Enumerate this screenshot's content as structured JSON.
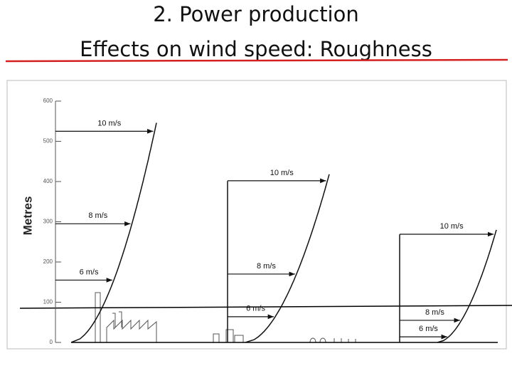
{
  "chart_data": {
    "type": "wind-profile",
    "title": "2. Power production",
    "subtitle": "Effects on wind speed: Roughness",
    "y_label": "Metres",
    "ylim": [
      0,
      600
    ],
    "yticks": [
      0,
      100,
      200,
      300,
      400,
      500,
      600
    ],
    "profiles": [
      {
        "arrows": [
          {
            "label": "10 m/s",
            "height": 525
          },
          {
            "label": "8 m/s",
            "height": 295
          },
          {
            "label": "6 m/s",
            "height": 155
          }
        ]
      },
      {
        "arrows": [
          {
            "label": "10 m/s",
            "height": 402
          },
          {
            "label": "8 m/s",
            "height": 170
          },
          {
            "label": "6 m/s",
            "height": 64
          }
        ]
      },
      {
        "arrows": [
          {
            "label": "10 m/s",
            "height": 269
          },
          {
            "label": "8 m/s",
            "height": 55
          },
          {
            "label": "6 m/s",
            "height": 14
          }
        ]
      }
    ]
  }
}
